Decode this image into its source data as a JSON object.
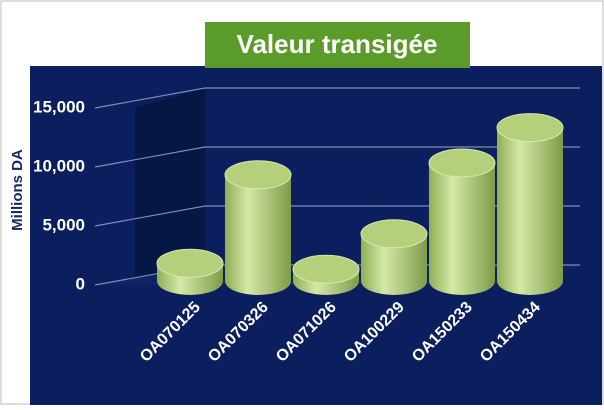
{
  "chart_data": {
    "type": "bar",
    "title": "Valeur transigée",
    "y_label": "Millions DA",
    "categories": [
      "OA070125",
      "OA070326",
      "OA071026",
      "OA100229",
      "OA150233",
      "OA150434"
    ],
    "values": [
      1500,
      9000,
      1000,
      4000,
      10000,
      13000
    ],
    "color": "#b5cf7a",
    "ylim": [
      0,
      15000
    ],
    "yticks": [
      0,
      {
        "value": 5000,
        "label": "5,000"
      },
      {
        "value": 10000,
        "label": "10,000"
      },
      {
        "value": 15000,
        "label": "15,000"
      }
    ],
    "grid": true
  }
}
